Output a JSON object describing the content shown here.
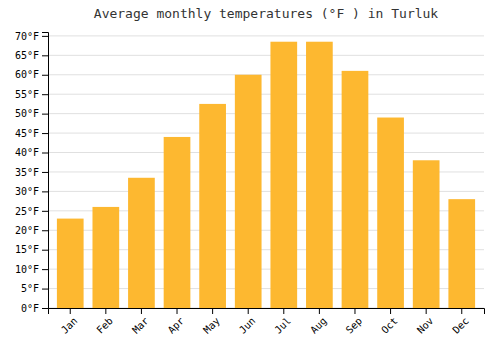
{
  "chart_data": {
    "type": "bar",
    "title": "Average monthly temperatures (°F ) in Turluk",
    "categories": [
      "Jan",
      "Feb",
      "Mar",
      "Apr",
      "May",
      "Jun",
      "Jul",
      "Aug",
      "Sep",
      "Oct",
      "Nov",
      "Dec"
    ],
    "values": [
      23,
      26,
      33.5,
      44,
      52.5,
      60,
      68.5,
      68.5,
      61,
      49,
      38,
      28
    ],
    "color": "#FDB830",
    "ylim": [
      0,
      71
    ],
    "yticks": [
      {
        "value": 0,
        "label": "0°F"
      },
      {
        "value": 5,
        "label": "5°F"
      },
      {
        "value": 10,
        "label": "10°F"
      },
      {
        "value": 15,
        "label": "15°F"
      },
      {
        "value": 20,
        "label": "20°F"
      },
      {
        "value": 25,
        "label": "25°F"
      },
      {
        "value": 30,
        "label": "30°F"
      },
      {
        "value": 35,
        "label": "35°F"
      },
      {
        "value": 40,
        "label": "40°F"
      },
      {
        "value": 45,
        "label": "45°F"
      },
      {
        "value": 50,
        "label": "50°F"
      },
      {
        "value": 55,
        "label": "55°F"
      },
      {
        "value": 60,
        "label": "60°F"
      },
      {
        "value": 65,
        "label": "65°F"
      },
      {
        "value": 70,
        "label": "70°F"
      }
    ],
    "grid": true
  }
}
